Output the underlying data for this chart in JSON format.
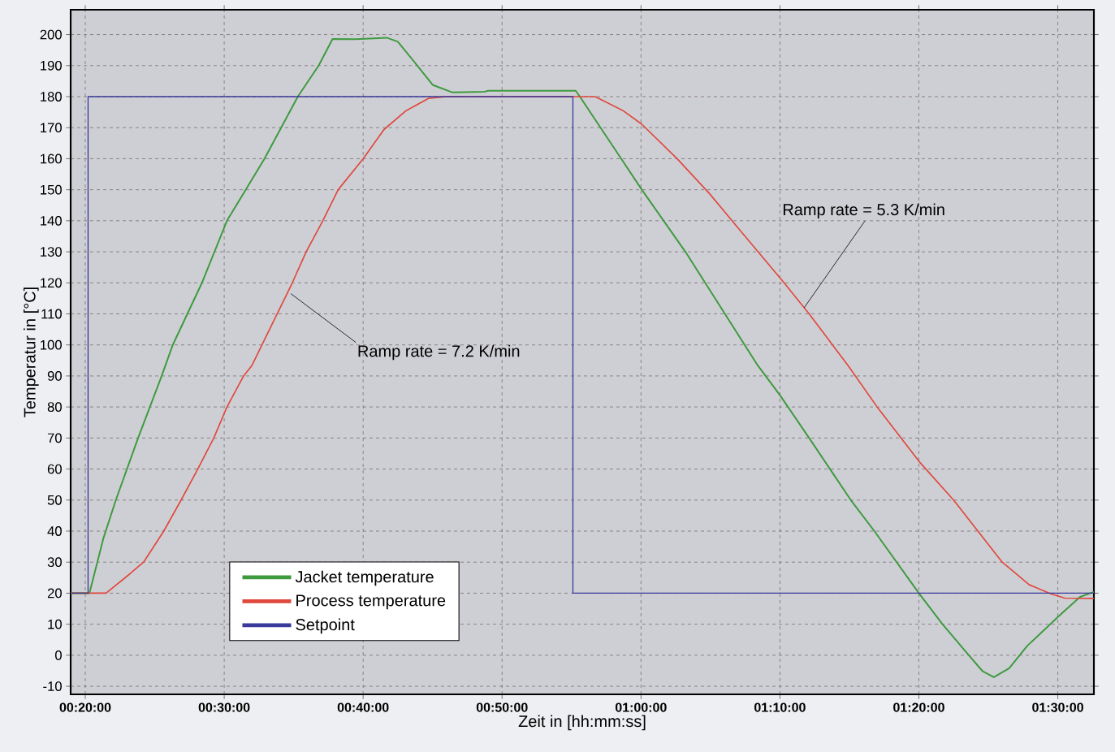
{
  "chart_data": {
    "type": "line",
    "xlabel": "Zeit in [hh:mm:ss]",
    "ylabel": "Temperatur in [°C]",
    "xlim": [
      0.3158,
      1.5433
    ],
    "ylim": [
      -12.6,
      208
    ],
    "xticks": [
      {
        "value": 0.33333,
        "label": "00:20:00"
      },
      {
        "value": 0.5,
        "label": "00:30:00"
      },
      {
        "value": 0.66667,
        "label": "00:40:00"
      },
      {
        "value": 0.83333,
        "label": "00:50:00"
      },
      {
        "value": 1,
        "label": "01:00:00"
      },
      {
        "value": 1.16667,
        "label": "01:10:00"
      },
      {
        "value": 1.33333,
        "label": "01:20:00"
      },
      {
        "value": 1.5,
        "label": "01:30:00"
      }
    ],
    "yticks": [
      -10,
      0,
      10,
      20,
      30,
      40,
      50,
      60,
      70,
      80,
      90,
      100,
      110,
      120,
      130,
      140,
      150,
      160,
      170,
      180,
      190,
      200
    ],
    "grid": true,
    "legend": "bottom left",
    "series": [
      {
        "name": "Jacket temperature",
        "color": "#3f9a3f",
        "x": [
          0.3158,
          0.3383,
          0.355,
          0.37,
          0.3967,
          0.425,
          0.4383,
          0.4733,
          0.5033,
          0.5483,
          0.5883,
          0.6133,
          0.63,
          0.6583,
          0.695,
          0.7083,
          0.7317,
          0.75,
          0.7733,
          0.8125,
          0.8167,
          0.9217,
          0.9267,
          1.001,
          1.0533,
          1.14,
          1.1667,
          1.2017,
          1.2517,
          1.28,
          1.3333,
          1.3617,
          1.3933,
          1.41,
          1.4233,
          1.4417,
          1.4633,
          1.5,
          1.5267,
          1.5433
        ],
        "values": [
          20,
          20,
          37.6,
          50,
          70,
          90,
          100,
          120,
          140,
          160,
          180,
          190,
          198.6,
          198.5,
          199,
          197.7,
          190,
          183.8,
          181.4,
          181.6,
          181.9,
          181.9,
          180,
          150,
          130,
          93.4,
          83.8,
          70,
          50,
          40,
          20,
          10,
          0,
          -5.2,
          -7.1,
          -4.2,
          3,
          12.3,
          18.8,
          20.4
        ]
      },
      {
        "name": "Process temperature",
        "color": "#e0483c",
        "x": [
          0.3158,
          0.3583,
          0.3867,
          0.4033,
          0.4275,
          0.4483,
          0.4683,
          0.4875,
          0.5033,
          0.5233,
          0.5333,
          0.5817,
          0.5983,
          0.6183,
          0.6367,
          0.6667,
          0.6917,
          0.7183,
          0.745,
          0.7667,
          0.92,
          0.945,
          0.9783,
          1.001,
          1.0433,
          1.0817,
          1.1183,
          1.1717,
          1.2017,
          1.2483,
          1.2833,
          1.335,
          1.375,
          1.4333,
          1.4658,
          1.4917,
          1.5083,
          1.5433
        ],
        "values": [
          20,
          20,
          26.2,
          30,
          40,
          50,
          60,
          70,
          80,
          90,
          93.4,
          120,
          130,
          140,
          150,
          160,
          169.4,
          175.5,
          179.4,
          180,
          180,
          180,
          175.5,
          171.1,
          160,
          148.9,
          137.1,
          120,
          110,
          93.4,
          80,
          62,
          50,
          30,
          22.7,
          19.8,
          18.4,
          18.3
        ]
      },
      {
        "name": "Setpoint",
        "color": "#3a3a9c",
        "x": [
          0.3158,
          0.3367,
          0.3367,
          0.9183,
          0.9183,
          1.5433
        ],
        "values": [
          20,
          20,
          180,
          180,
          20,
          20
        ]
      }
    ],
    "annotations": [
      {
        "text": "Ramp rate = 7.2 K/min",
        "x": 0.58,
        "y": 116.5
      },
      {
        "text": "Ramp rate = 5.3 K/min",
        "x": 1.1958,
        "y": 112
      }
    ]
  }
}
